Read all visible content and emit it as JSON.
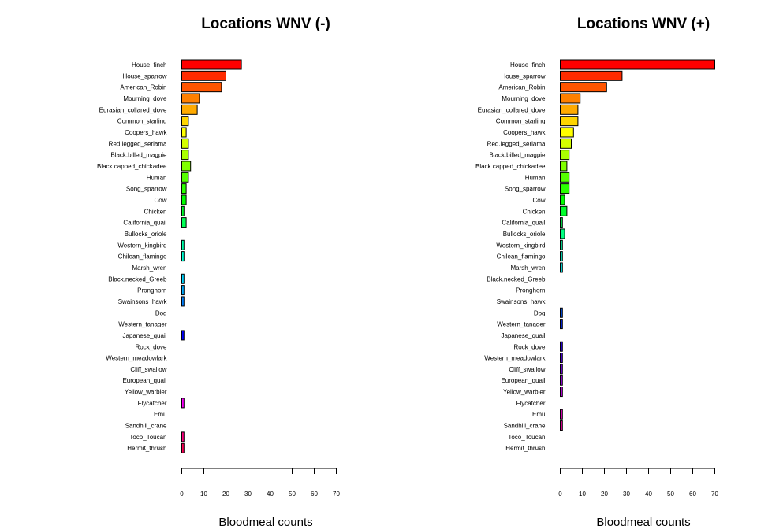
{
  "chart_data": [
    {
      "type": "bar",
      "orientation": "horizontal",
      "title": "Locations WNV (-)",
      "xlabel": "Bloodmeal counts",
      "ylabel": "",
      "xlim": [
        0,
        70
      ],
      "ticks": [
        0,
        10,
        20,
        30,
        40,
        50,
        60,
        70
      ],
      "grid": false,
      "categories": [
        "House_finch",
        "House_sparrow",
        "American_Robin",
        "Mourning_dove",
        "Eurasian_collared_dove",
        "Common_starling",
        "Coopers_hawk",
        "Red.legged_seriama",
        "Black.billed_magpie",
        "Black.capped_chickadee",
        "Human",
        "Song_sparrow",
        "Cow",
        "Chicken",
        "California_quail",
        "Bullocks_oriole",
        "Western_kingbird",
        "Chilean_flamingo",
        "Marsh_wren",
        "Black.necked_Greeb",
        "Pronghorn",
        "Swainsons_hawk",
        "Dog",
        "Western_tanager",
        "Japanese_quail",
        "Rock_dove",
        "Western_meadowlark",
        "Cliff_swallow",
        "European_quail",
        "Yellow_warbler",
        "Flycatcher",
        "Emu",
        "Sandhill_crane",
        "Toco_Toucan",
        "Hermit_thrush"
      ],
      "values": [
        27,
        20,
        18,
        8,
        7,
        3,
        2,
        3,
        3,
        4,
        3,
        2,
        2,
        1,
        2,
        0,
        1,
        1,
        0,
        1,
        1,
        1,
        0,
        0,
        1,
        0,
        0,
        0,
        0,
        0,
        1,
        0,
        0,
        1,
        1
      ]
    },
    {
      "type": "bar",
      "orientation": "horizontal",
      "title": "Locations WNV (+)",
      "xlabel": "Bloodmeal counts",
      "ylabel": "",
      "xlim": [
        0,
        70
      ],
      "ticks": [
        0,
        10,
        20,
        30,
        40,
        50,
        60,
        70
      ],
      "grid": false,
      "categories": [
        "House_finch",
        "House_sparrow",
        "American_Robin",
        "Mourning_dove",
        "Eurasian_collared_dove",
        "Common_starling",
        "Coopers_hawk",
        "Red.legged_seriama",
        "Black.billed_magpie",
        "Black.capped_chickadee",
        "Human",
        "Song_sparrow",
        "Cow",
        "Chicken",
        "California_quail",
        "Bullocks_oriole",
        "Western_kingbird",
        "Chilean_flamingo",
        "Marsh_wren",
        "Black.necked_Greeb",
        "Pronghorn",
        "Swainsons_hawk",
        "Dog",
        "Western_tanager",
        "Japanese_quail",
        "Rock_dove",
        "Western_meadowlark",
        "Cliff_swallow",
        "European_quail",
        "Yellow_warbler",
        "Flycatcher",
        "Emu",
        "Sandhill_crane",
        "Toco_Toucan",
        "Hermit_thrush"
      ],
      "values": [
        70,
        28,
        21,
        9,
        8,
        8,
        6,
        5,
        4,
        3,
        4,
        4,
        2,
        3,
        1,
        2,
        1,
        1,
        1,
        0,
        0,
        0,
        1,
        1,
        0,
        1,
        1,
        1,
        1,
        1,
        0,
        1,
        1,
        0,
        0
      ]
    }
  ],
  "colors": {
    "bar_stroke": "#000000",
    "palette": [
      "#FF0000",
      "#FF2B00",
      "#FF5500",
      "#FF8000",
      "#FFAA00",
      "#FFD500",
      "#FFFF00",
      "#D5FF00",
      "#AAFF00",
      "#80FF00",
      "#55FF00",
      "#2BFF00",
      "#00FF00",
      "#00FF2B",
      "#00FF55",
      "#00FF80",
      "#00FFAA",
      "#00FFD5",
      "#00FFFF",
      "#00D5FF",
      "#00AAFF",
      "#0080FF",
      "#0055FF",
      "#002BFF",
      "#0000FF",
      "#2B00FF",
      "#5500FF",
      "#8000FF",
      "#AA00FF",
      "#D500FF",
      "#FF00FF",
      "#FF00D5",
      "#FF00AA",
      "#FF0080",
      "#FF0055"
    ]
  }
}
